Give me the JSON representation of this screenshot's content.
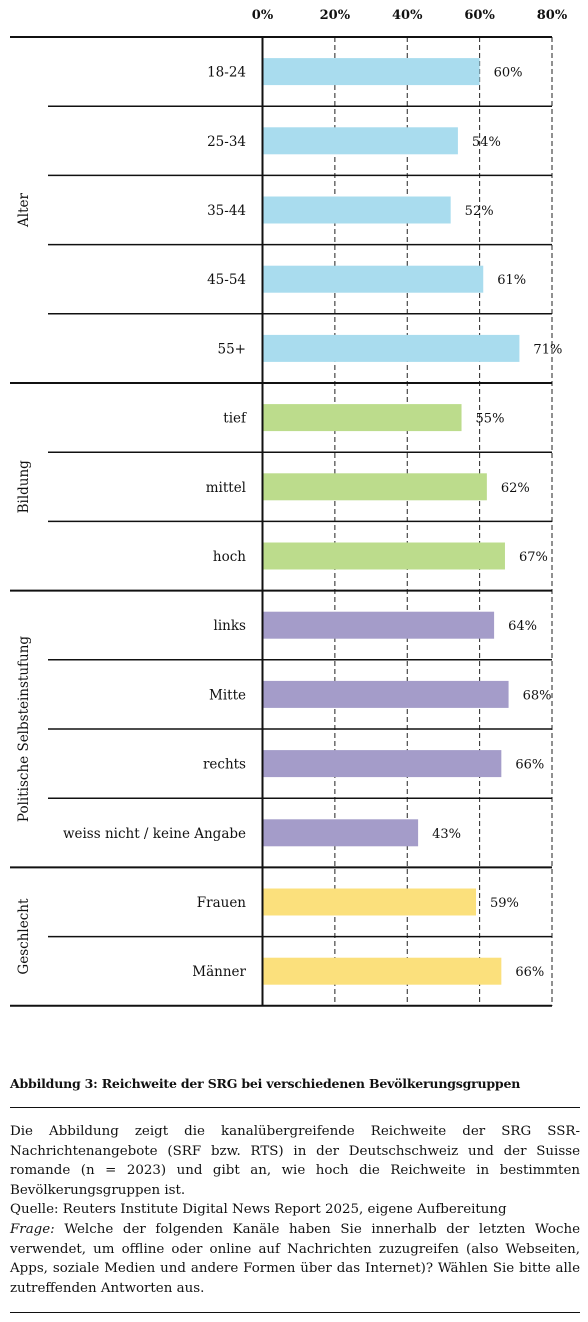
{
  "chart_data": {
    "type": "bar",
    "orientation": "horizontal",
    "xlim": [
      0,
      80
    ],
    "x_ticks": [
      "0%",
      "20%",
      "40%",
      "60%",
      "80%"
    ],
    "grid": "vertical dashed",
    "groups": [
      {
        "label": "Alter",
        "color": "#a9dcee",
        "categories": [
          "18-24",
          "25-34",
          "35-44",
          "45-54",
          "55+"
        ],
        "values": [
          60,
          54,
          52,
          61,
          71
        ],
        "value_labels": [
          "60%",
          "54%",
          "52%",
          "61%",
          "71%"
        ]
      },
      {
        "label": "Bildung",
        "color": "#bcdc8c",
        "categories": [
          "tief",
          "mittel",
          "hoch"
        ],
        "values": [
          55,
          62,
          67
        ],
        "value_labels": [
          "55%",
          "62%",
          "67%"
        ]
      },
      {
        "label": "Politische Selbsteinstufung",
        "color": "#a49cc9",
        "categories": [
          "links",
          "Mitte",
          "rechts",
          "weiss nicht / keine Angabe"
        ],
        "values": [
          64,
          68,
          66,
          43
        ],
        "value_labels": [
          "64%",
          "68%",
          "66%",
          "43%"
        ]
      },
      {
        "label": "Geschlecht",
        "color": "#fbe07c",
        "categories": [
          "Frauen",
          "Männer"
        ],
        "values": [
          59,
          66
        ],
        "value_labels": [
          "59%",
          "66%"
        ]
      }
    ]
  },
  "figure": {
    "title": "Abbildung 3: Reichweite der SRG bei verschiedenen Bevölkerungsgruppen",
    "description": "Die Abbildung zeigt die kanalübergreifende Reichweite der SRG SSR-Nachrichtenangebote (SRF bzw. RTS) in der Deutschschweiz und der Suisse romande (n = 2023) und gibt an, wie hoch die Reichweite in bestimmten Bevölkerungsgruppen ist.",
    "source": "Quelle: Reuters Institute Digital News Report 2025, eigene Aufbereitung",
    "question_label": "Frage:",
    "question": "Welche der folgenden Kanäle haben Sie innerhalb der letzten Woche verwendet, um offline oder online auf Nachrichten zuzugreifen (also Webseiten, Apps, soziale Medien und andere Formen über das Internet)? Wählen Sie bitte alle zutreffenden Antworten aus."
  }
}
